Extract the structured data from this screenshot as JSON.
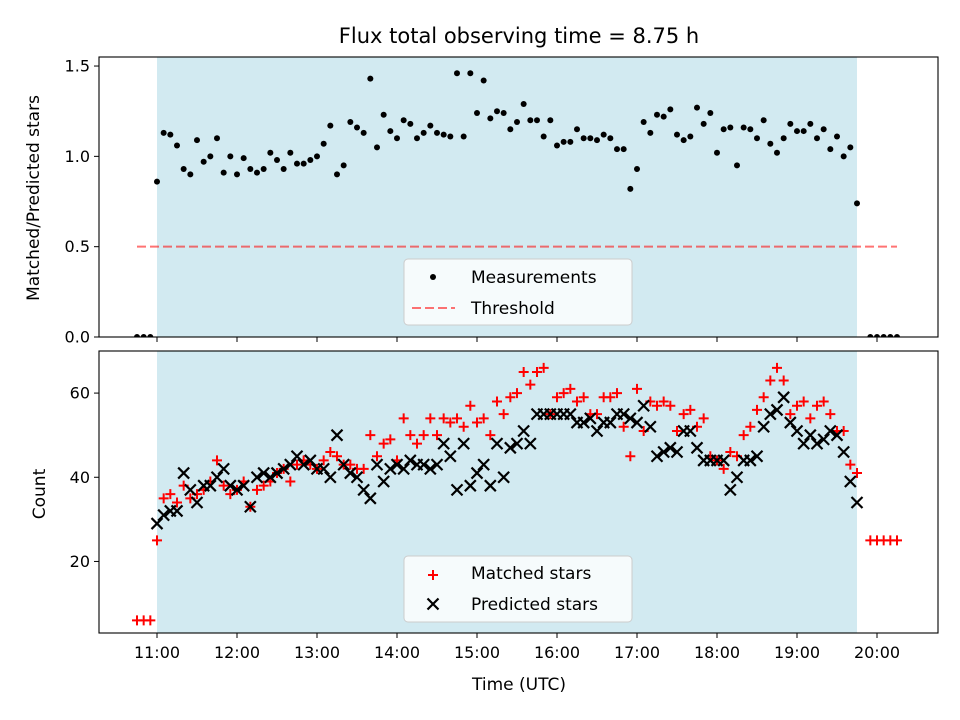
{
  "chart_data": {
    "type": "scatter",
    "title": "Flux total observing time = 8.75 h",
    "xlabel": "Time (UTC)",
    "x_ticks": [
      "11:00",
      "12:00",
      "13:00",
      "14:00",
      "15:00",
      "16:00",
      "17:00",
      "18:00",
      "19:00",
      "20:00"
    ],
    "observing_window": [
      "11:00",
      "19:45"
    ],
    "colors": {
      "window": "#add8e6",
      "measurements": "#000000",
      "threshold": "#ff0000",
      "matched": "#ff0000",
      "predicted": "#000000"
    },
    "top_panel": {
      "ylabel": "Matched/Predicted stars",
      "ylim": [
        0,
        1.55
      ],
      "y_ticks": [
        "0.0",
        "0.5",
        "1.0",
        "1.5"
      ],
      "threshold": {
        "name": "Threshold",
        "y": 0.5,
        "x_range": [
          "10:45",
          "20:15"
        ],
        "style": "dashed"
      },
      "legend": {
        "position": "bottom-center",
        "entries": [
          "Measurements",
          "Threshold"
        ]
      },
      "measurements": {
        "name": "Measurements",
        "x": [
          "10:45",
          "10:50",
          "10:55",
          "11:00",
          "11:05",
          "11:10",
          "11:15",
          "11:20",
          "11:25",
          "11:30",
          "11:35",
          "11:40",
          "11:45",
          "11:50",
          "11:55",
          "12:00",
          "12:05",
          "12:10",
          "12:15",
          "12:20",
          "12:25",
          "12:30",
          "12:35",
          "12:40",
          "12:45",
          "12:50",
          "12:55",
          "13:00",
          "13:05",
          "13:10",
          "13:15",
          "13:20",
          "13:25",
          "13:30",
          "13:35",
          "13:40",
          "13:45",
          "13:50",
          "13:55",
          "14:00",
          "14:05",
          "14:10",
          "14:15",
          "14:20",
          "14:25",
          "14:30",
          "14:35",
          "14:40",
          "14:45",
          "14:50",
          "14:55",
          "15:00",
          "15:05",
          "15:10",
          "15:15",
          "15:20",
          "15:25",
          "15:30",
          "15:35",
          "15:40",
          "15:45",
          "15:50",
          "15:55",
          "16:00",
          "16:05",
          "16:10",
          "16:15",
          "16:20",
          "16:25",
          "16:30",
          "16:35",
          "16:40",
          "16:45",
          "16:50",
          "16:55",
          "17:00",
          "17:05",
          "17:10",
          "17:15",
          "17:20",
          "17:25",
          "17:30",
          "17:35",
          "17:40",
          "17:45",
          "17:50",
          "17:55",
          "18:00",
          "18:05",
          "18:10",
          "18:15",
          "18:20",
          "18:25",
          "18:30",
          "18:35",
          "18:40",
          "18:45",
          "18:50",
          "18:55",
          "19:00",
          "19:05",
          "19:10",
          "19:15",
          "19:20",
          "19:25",
          "19:30",
          "19:35",
          "19:40",
          "19:45",
          "19:55",
          "20:00",
          "20:05",
          "20:10",
          "20:15"
        ],
        "y": [
          0,
          0,
          0,
          0.86,
          1.13,
          1.12,
          1.06,
          0.93,
          0.9,
          1.09,
          0.97,
          1.0,
          1.1,
          0.91,
          1.0,
          0.9,
          0.99,
          0.93,
          0.91,
          0.93,
          1.02,
          0.98,
          0.93,
          1.02,
          0.96,
          0.96,
          0.98,
          1.0,
          1.07,
          1.17,
          0.9,
          0.95,
          1.19,
          1.16,
          1.13,
          1.43,
          1.05,
          1.23,
          1.14,
          1.1,
          1.2,
          1.18,
          1.1,
          1.13,
          1.17,
          1.13,
          1.12,
          1.11,
          1.46,
          1.11,
          1.46,
          1.24,
          1.42,
          1.21,
          1.25,
          1.24,
          1.15,
          1.19,
          1.29,
          1.2,
          1.2,
          1.11,
          1.2,
          1.06,
          1.08,
          1.08,
          1.15,
          1.1,
          1.1,
          1.09,
          1.12,
          1.1,
          1.04,
          1.04,
          0.82,
          0.93,
          1.19,
          1.13,
          1.23,
          1.22,
          1.26,
          1.12,
          1.09,
          1.11,
          1.27,
          1.18,
          1.24,
          1.02,
          1.15,
          1.16,
          0.95,
          1.16,
          1.15,
          1.1,
          1.2,
          1.07,
          1.02,
          1.1,
          1.18,
          1.14,
          1.14,
          1.18,
          1.1,
          1.15,
          1.04,
          1.11,
          1.0,
          1.05,
          0.74,
          0,
          0,
          0,
          0,
          0
        ]
      }
    },
    "bottom_panel": {
      "ylabel": "Count",
      "ylim": [
        3,
        70
      ],
      "y_ticks": [
        "20",
        "40",
        "60"
      ],
      "legend": {
        "position": "bottom-center",
        "entries": [
          "Matched stars",
          "Predicted stars"
        ]
      },
      "series": [
        {
          "name": "Matched stars",
          "marker": "plus",
          "x": [
            "10:45",
            "10:50",
            "10:55",
            "11:00",
            "11:05",
            "11:10",
            "11:15",
            "11:20",
            "11:25",
            "11:30",
            "11:35",
            "11:40",
            "11:45",
            "11:50",
            "11:55",
            "12:00",
            "12:05",
            "12:10",
            "12:15",
            "12:20",
            "12:25",
            "12:30",
            "12:35",
            "12:40",
            "12:45",
            "12:50",
            "12:55",
            "13:00",
            "13:05",
            "13:10",
            "13:15",
            "13:20",
            "13:25",
            "13:30",
            "13:35",
            "13:40",
            "13:45",
            "13:50",
            "13:55",
            "14:00",
            "14:05",
            "14:10",
            "14:15",
            "14:20",
            "14:25",
            "14:30",
            "14:35",
            "14:40",
            "14:45",
            "14:50",
            "14:55",
            "15:00",
            "15:05",
            "15:10",
            "15:15",
            "15:20",
            "15:25",
            "15:30",
            "15:35",
            "15:40",
            "15:45",
            "15:50",
            "15:55",
            "16:00",
            "16:05",
            "16:10",
            "16:15",
            "16:20",
            "16:25",
            "16:30",
            "16:35",
            "16:40",
            "16:45",
            "16:50",
            "16:55",
            "17:00",
            "17:05",
            "17:10",
            "17:15",
            "17:20",
            "17:25",
            "17:30",
            "17:35",
            "17:40",
            "17:45",
            "17:50",
            "17:55",
            "18:00",
            "18:05",
            "18:10",
            "18:15",
            "18:20",
            "18:25",
            "18:30",
            "18:35",
            "18:40",
            "18:45",
            "18:50",
            "18:55",
            "19:00",
            "19:05",
            "19:10",
            "19:15",
            "19:20",
            "19:25",
            "19:30",
            "19:35",
            "19:40",
            "19:45",
            "19:55",
            "20:00",
            "20:05",
            "20:10",
            "20:15"
          ],
          "y": [
            6,
            6,
            6,
            25,
            35,
            36,
            34,
            38,
            35,
            36,
            37,
            39,
            44,
            38,
            36,
            37,
            39,
            33,
            37,
            38,
            39,
            41,
            42,
            39,
            43,
            44,
            43,
            42,
            44,
            46,
            45,
            43,
            43,
            42,
            42,
            50,
            45,
            48,
            49,
            44,
            54,
            50,
            48,
            50,
            54,
            50,
            54,
            53,
            54,
            52,
            57,
            53,
            54,
            50,
            58,
            55,
            59,
            60,
            65,
            62,
            65,
            66,
            55,
            59,
            60,
            61,
            58,
            59,
            55,
            55,
            59,
            59,
            60,
            52,
            45,
            61,
            51,
            58,
            57,
            58,
            57,
            51,
            55,
            56,
            52,
            54,
            45,
            44,
            42,
            46,
            45,
            50,
            52,
            56,
            59,
            63,
            66,
            63,
            55,
            57,
            58,
            54,
            57,
            58,
            55,
            51,
            51,
            43,
            41,
            25,
            25,
            25,
            25,
            25
          ]
        },
        {
          "name": "Predicted stars",
          "marker": "x",
          "x": [
            "11:00",
            "11:05",
            "11:10",
            "11:15",
            "11:20",
            "11:25",
            "11:30",
            "11:35",
            "11:40",
            "11:45",
            "11:50",
            "11:55",
            "12:00",
            "12:05",
            "12:10",
            "12:15",
            "12:20",
            "12:25",
            "12:30",
            "12:35",
            "12:40",
            "12:45",
            "12:50",
            "12:55",
            "13:00",
            "13:05",
            "13:10",
            "13:15",
            "13:20",
            "13:25",
            "13:30",
            "13:35",
            "13:40",
            "13:45",
            "13:50",
            "13:55",
            "14:00",
            "14:05",
            "14:10",
            "14:15",
            "14:20",
            "14:25",
            "14:30",
            "14:35",
            "14:40",
            "14:45",
            "14:50",
            "14:55",
            "15:00",
            "15:05",
            "15:10",
            "15:15",
            "15:20",
            "15:25",
            "15:30",
            "15:35",
            "15:40",
            "15:45",
            "15:50",
            "15:55",
            "16:00",
            "16:05",
            "16:10",
            "16:15",
            "16:20",
            "16:25",
            "16:30",
            "16:35",
            "16:40",
            "16:45",
            "16:50",
            "16:55",
            "17:00",
            "17:05",
            "17:10",
            "17:15",
            "17:20",
            "17:25",
            "17:30",
            "17:35",
            "17:40",
            "17:45",
            "17:50",
            "17:55",
            "18:00",
            "18:05",
            "18:10",
            "18:15",
            "18:20",
            "18:25",
            "18:30",
            "18:35",
            "18:40",
            "18:45",
            "18:50",
            "18:55",
            "19:00",
            "19:05",
            "19:10",
            "19:15",
            "19:20",
            "19:25",
            "19:30",
            "19:35",
            "19:40",
            "19:45"
          ],
          "y": [
            29,
            31,
            32,
            32,
            41,
            37,
            34,
            38,
            38,
            40,
            42,
            38,
            37,
            38,
            33,
            40,
            41,
            40,
            41,
            42,
            43,
            45,
            43,
            44,
            42,
            42,
            40,
            50,
            43,
            41,
            40,
            37,
            35,
            43,
            39,
            42,
            43,
            42,
            44,
            43,
            43,
            42,
            43,
            48,
            45,
            37,
            48,
            38,
            41,
            43,
            38,
            48,
            40,
            47,
            48,
            51,
            48,
            55,
            55,
            55,
            55,
            55,
            55,
            53,
            53,
            54,
            51,
            53,
            53,
            55,
            55,
            54,
            53,
            57,
            52,
            45,
            46,
            47,
            46,
            51,
            51,
            47,
            44,
            44,
            44,
            44,
            37,
            40,
            44,
            44,
            45,
            52,
            55,
            56,
            59,
            53,
            51,
            48,
            50,
            48,
            49,
            51,
            50,
            46,
            39,
            34
          ]
        }
      ]
    }
  }
}
